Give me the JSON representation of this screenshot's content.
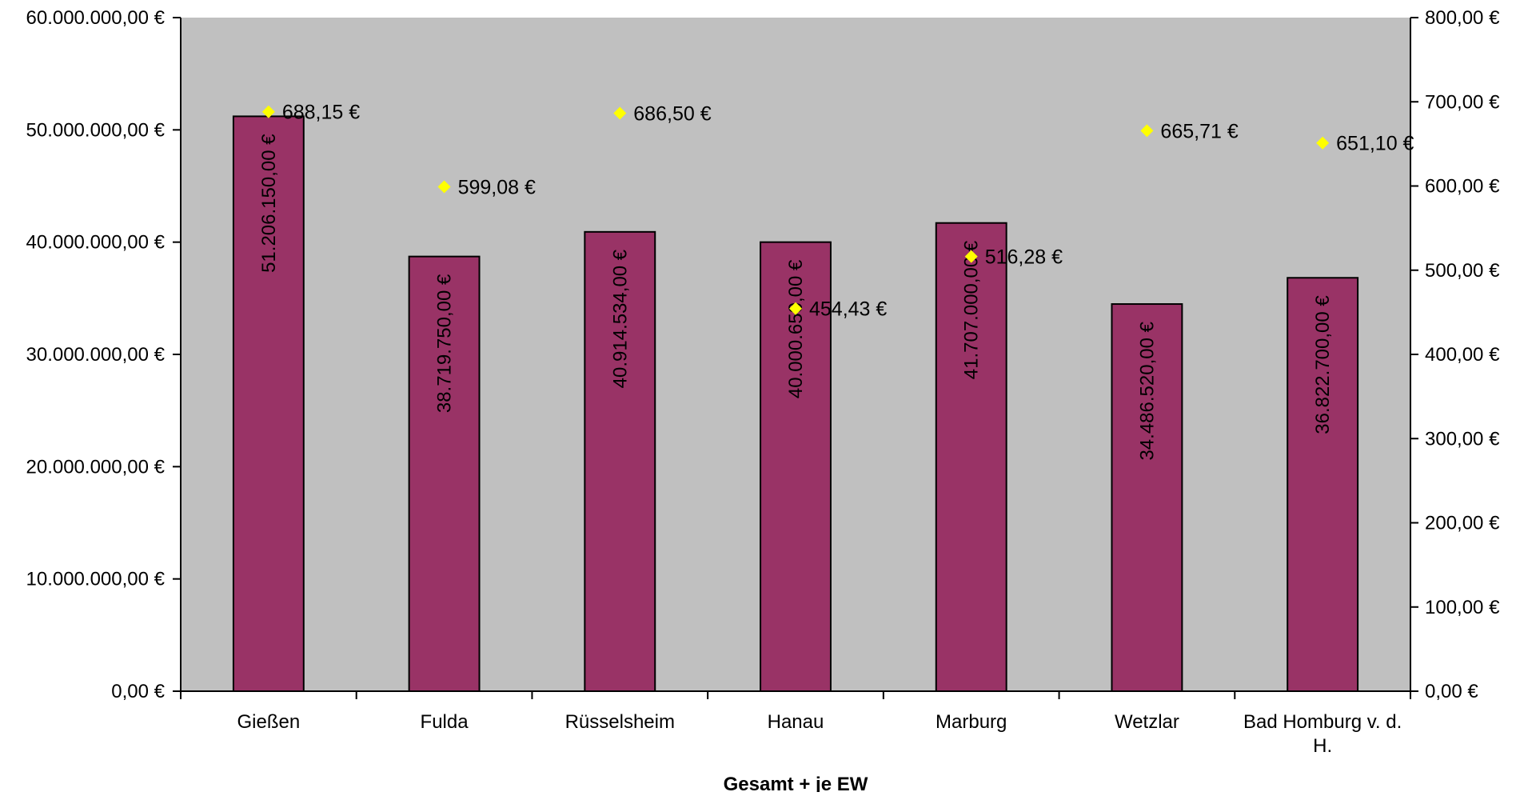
{
  "chart_data": {
    "type": "bar",
    "xlabel": "Gesamt + je EW",
    "categories": [
      "Gießen",
      "Fulda",
      "Rüsselsheim",
      "Hanau",
      "Marburg",
      "Wetzlar",
      "Bad Homburg v. d. H."
    ],
    "category_label_lines": [
      [
        "Gießen"
      ],
      [
        "Fulda"
      ],
      [
        "Rüsselsheim"
      ],
      [
        "Hanau"
      ],
      [
        "Marburg"
      ],
      [
        "Wetzlar"
      ],
      [
        "Bad Homburg v. d.",
        "H."
      ]
    ],
    "series": [
      {
        "type": "bar",
        "axis": "left",
        "values": [
          51206150.0,
          38719750.0,
          40914534.0,
          40000650.0,
          41707000.0,
          34486520.0,
          36822700.0
        ],
        "labels": [
          "51.206.150,00 €",
          "38.719.750,00 €",
          "40.914.534,00 €",
          "40.000.650,00 €",
          "41.707.000,00 €",
          "34.486.520,00 €",
          "36.822.700,00 €"
        ]
      },
      {
        "type": "scatter",
        "axis": "right",
        "values": [
          688.15,
          599.08,
          686.5,
          454.43,
          516.28,
          665.71,
          651.1
        ],
        "labels": [
          "688,15 €",
          "599,08 €",
          "686,50 €",
          "454,43 €",
          "516,28 €",
          "665,71 €",
          "651,10 €"
        ]
      }
    ],
    "y_left": {
      "min": 0,
      "max": 60000000,
      "ticks": [
        "0,00 €",
        "10.000.000,00 €",
        "20.000.000,00 €",
        "30.000.000,00 €",
        "40.000.000,00 €",
        "50.000.000,00 €",
        "60.000.000,00 €"
      ]
    },
    "y_right": {
      "min": 0,
      "max": 800,
      "ticks": [
        "0,00 €",
        "100,00 €",
        "200,00 €",
        "300,00 €",
        "400,00 €",
        "500,00 €",
        "600,00 €",
        "700,00 €",
        "800,00 €"
      ]
    },
    "grid": false,
    "legend": "none",
    "colors": {
      "plot_background": "#c0c0c0",
      "bar_fill": "#993366",
      "marker_fill": "#ffff00"
    }
  }
}
